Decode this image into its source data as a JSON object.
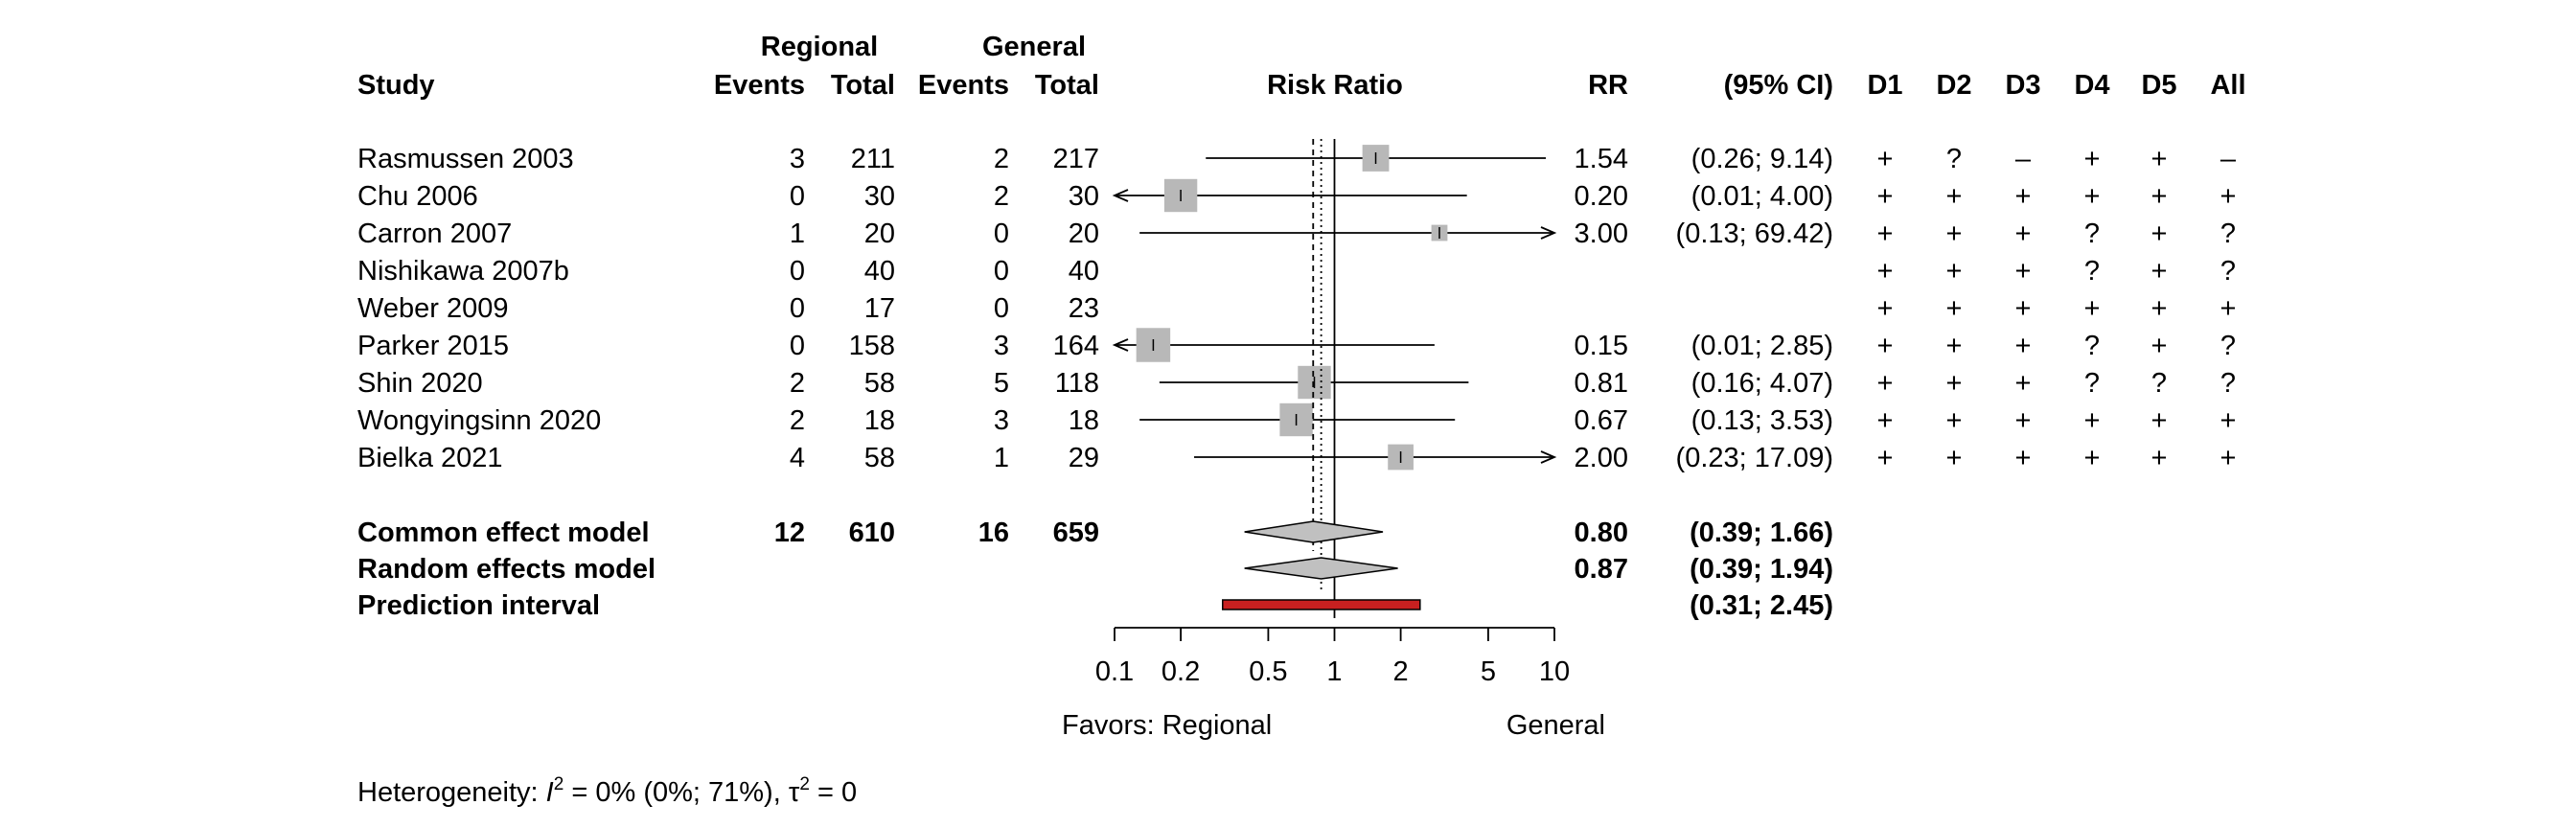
{
  "chart_data": {
    "type": "forest",
    "columns": {
      "study": "Study",
      "group1": "Regional",
      "group2": "General",
      "events": "Events",
      "total": "Total",
      "plot": "Risk Ratio",
      "rr": "RR",
      "ci": "(95% CI)",
      "domains": [
        "D1",
        "D2",
        "D3",
        "D4",
        "D5",
        "All"
      ]
    },
    "studies": [
      {
        "name": "Rasmussen 2003",
        "e1": "3",
        "n1": "211",
        "e2": "2",
        "n2": "217",
        "rr": 1.54,
        "lo": 0.26,
        "hi": 9.14,
        "rr_text": "1.54",
        "ci_text": "(0.26;  9.14)",
        "w": 0.9,
        "rob": [
          "+",
          "?",
          "–",
          "+",
          "+",
          "–"
        ]
      },
      {
        "name": "Chu 2006",
        "e1": "0",
        "n1": "30",
        "e2": "2",
        "n2": "30",
        "rr": 0.2,
        "lo": 0.01,
        "hi": 4.0,
        "rr_text": "0.20",
        "ci_text": "(0.01;  4.00)",
        "w": 1.2,
        "rob": [
          "+",
          "+",
          "+",
          "+",
          "+",
          "+"
        ]
      },
      {
        "name": "Carron 2007",
        "e1": "1",
        "n1": "20",
        "e2": "0",
        "n2": "20",
        "rr": 3.0,
        "lo": 0.13,
        "hi": 69.42,
        "rr_text": "3.00",
        "ci_text": "(0.13; 69.42)",
        "w": 0.4,
        "rob": [
          "+",
          "+",
          "+",
          "?",
          "+",
          "?"
        ]
      },
      {
        "name": "Nishikawa 2007b",
        "e1": "0",
        "n1": "40",
        "e2": "0",
        "n2": "40",
        "rr": null,
        "lo": null,
        "hi": null,
        "rr_text": "",
        "ci_text": "",
        "w": 0,
        "rob": [
          "+",
          "+",
          "+",
          "?",
          "+",
          "?"
        ]
      },
      {
        "name": "Weber 2009",
        "e1": "0",
        "n1": "17",
        "e2": "0",
        "n2": "23",
        "rr": null,
        "lo": null,
        "hi": null,
        "rr_text": "",
        "ci_text": "",
        "w": 0,
        "rob": [
          "+",
          "+",
          "+",
          "+",
          "+",
          "+"
        ]
      },
      {
        "name": "Parker 2015",
        "e1": "0",
        "n1": "158",
        "e2": "3",
        "n2": "164",
        "rr": 0.15,
        "lo": 0.01,
        "hi": 2.85,
        "rr_text": "0.15",
        "ci_text": "(0.01;  2.85)",
        "w": 1.25,
        "rob": [
          "+",
          "+",
          "+",
          "?",
          "+",
          "?"
        ]
      },
      {
        "name": "Shin 2020",
        "e1": "2",
        "n1": "58",
        "e2": "5",
        "n2": "118",
        "rr": 0.81,
        "lo": 0.16,
        "hi": 4.07,
        "rr_text": "0.81",
        "ci_text": "(0.16;  4.07)",
        "w": 1.2,
        "rob": [
          "+",
          "+",
          "+",
          "?",
          "?",
          "?"
        ]
      },
      {
        "name": "Wongyingsinn 2020",
        "e1": "2",
        "n1": "18",
        "e2": "3",
        "n2": "18",
        "rr": 0.67,
        "lo": 0.13,
        "hi": 3.53,
        "rr_text": "0.67",
        "ci_text": "(0.13;  3.53)",
        "w": 1.2,
        "rob": [
          "+",
          "+",
          "+",
          "+",
          "+",
          "+"
        ]
      },
      {
        "name": "Bielka 2021",
        "e1": "4",
        "n1": "58",
        "e2": "1",
        "n2": "29",
        "rr": 2.0,
        "lo": 0.23,
        "hi": 17.09,
        "rr_text": "2.00",
        "ci_text": "(0.23; 17.09)",
        "w": 0.85,
        "rob": [
          "+",
          "+",
          "+",
          "+",
          "+",
          "+"
        ]
      }
    ],
    "common": {
      "label": "Common effect model",
      "e1": "12",
      "n1": "610",
      "e2": "16",
      "n2": "659",
      "rr": 0.8,
      "lo": 0.39,
      "hi": 1.66,
      "rr_text": "0.80",
      "ci_text": "(0.39;  1.66)"
    },
    "random": {
      "label": "Random effects model",
      "rr": 0.87,
      "lo": 0.39,
      "hi": 1.94,
      "rr_text": "0.87",
      "ci_text": "(0.39;  1.94)"
    },
    "prediction": {
      "label": "Prediction interval",
      "lo": 0.31,
      "hi": 2.45,
      "ci_text": "(0.31;  2.45)"
    },
    "axis": {
      "ticks": [
        0.1,
        0.2,
        0.5,
        1,
        2,
        5,
        10
      ],
      "tick_labels": [
        "0.1",
        "0.2",
        "0.5",
        "1",
        "2",
        "5",
        "10"
      ],
      "scale": "log",
      "min": 0.1,
      "max": 10
    },
    "favors_left": "Favors: Regional",
    "favors_right": "General",
    "heterogeneity": {
      "prefix": "Heterogeneity: ",
      "I": "I",
      "sup1": "2",
      "mid": " = 0% (0%; 71%), ",
      "tau": "τ",
      "sup2": "2",
      "suffix": " = 0"
    },
    "colors": {
      "box": "#b8b8b8",
      "diamond": "#c0c0c0",
      "prediction": "#c82020"
    }
  }
}
